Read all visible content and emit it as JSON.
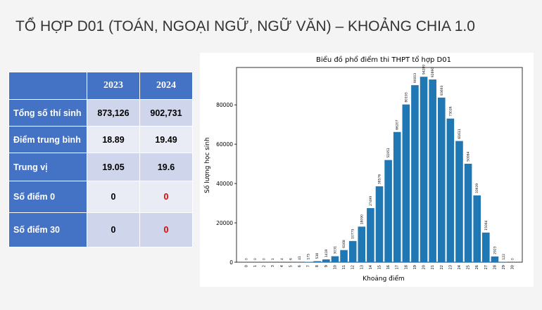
{
  "title": "TỔ HỢP D01 (TOÁN, NGOẠI NGỮ, NGỮ VĂN) – KHOẢNG CHIA 1.0",
  "table": {
    "header": [
      "2023",
      "2024"
    ],
    "rows": [
      [
        "Tổng số thí sinh",
        "873,126",
        "902,731"
      ],
      [
        "Điểm trung bình",
        "18.89",
        "19.49"
      ],
      [
        "Trung vị",
        "19.05",
        "19.6"
      ],
      [
        "Số điểm 0",
        "0",
        "0"
      ],
      [
        "Số điểm 30",
        "0",
        "0"
      ]
    ]
  },
  "chart_data": {
    "type": "bar",
    "title": "Biểu đồ phổ điểm thi THPT tổ hợp D01",
    "x_label": "Khoảng điểm",
    "y_label": "Số lượng học sinh",
    "categories": [
      "0",
      "1",
      "2",
      "3",
      "4",
      "5",
      "6",
      "7",
      "8",
      "9",
      "10",
      "11",
      "12",
      "13",
      "14",
      "15",
      "16",
      "17",
      "18",
      "19",
      "20",
      "21",
      "22",
      "23",
      "24",
      "25",
      "26",
      "27",
      "28",
      "29",
      "30"
    ],
    "values": [
      0,
      0,
      0,
      1,
      4,
      6,
      41,
      175,
      538,
      1419,
      3031,
      6168,
      10775,
      18090,
      27499,
      38576,
      51951,
      66207,
      80193,
      90003,
      94289,
      92890,
      83693,
      73026,
      61611,
      50064,
      33939,
      15064,
      2923,
      122,
      0
    ],
    "color": "#1f77b4",
    "ylim": [
      0,
      99000
    ],
    "yticks": [
      0,
      20000,
      40000,
      60000,
      80000
    ]
  }
}
